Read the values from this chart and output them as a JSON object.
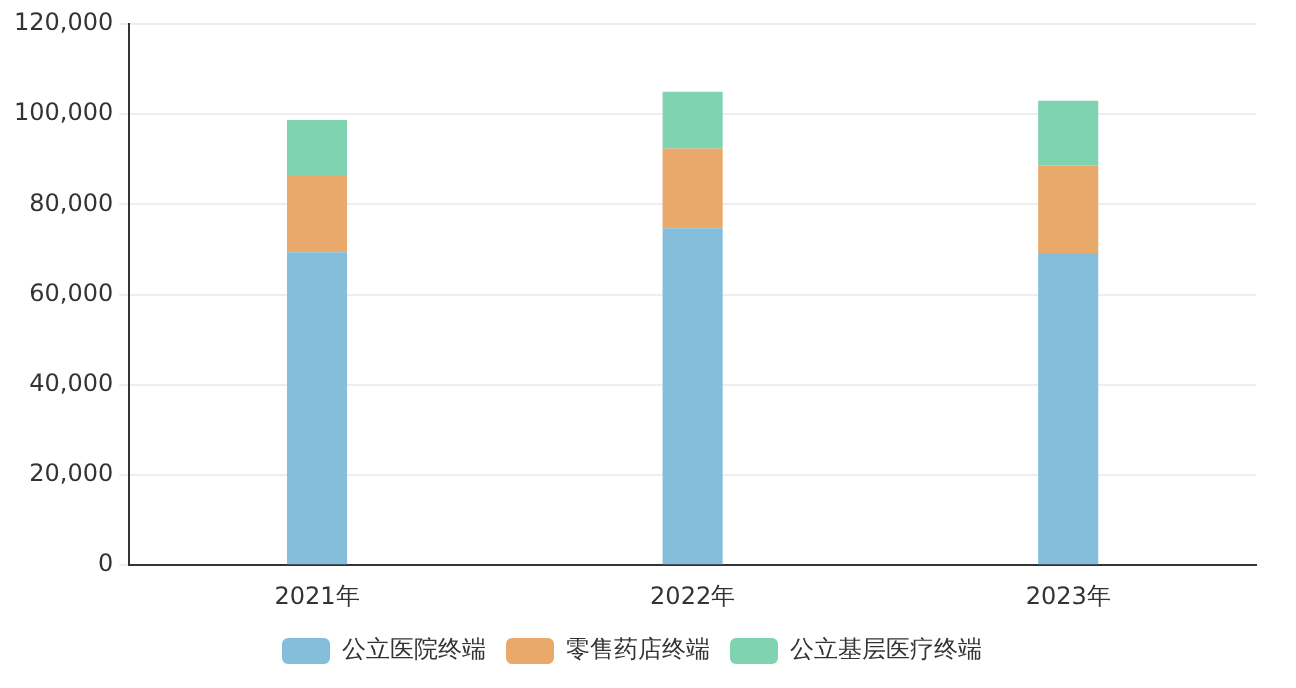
{
  "chart_data": {
    "type": "bar",
    "stacked": true,
    "categories": [
      "2021年",
      "2022年",
      "2023年"
    ],
    "series": [
      {
        "name": "公立医院终端",
        "color": "#85bedb",
        "values": [
          69400,
          74700,
          69200
        ]
      },
      {
        "name": "零售药店终端",
        "color": "#e8a96b",
        "values": [
          17100,
          17700,
          19400
        ]
      },
      {
        "name": "公立基层医疗终端",
        "color": "#7fd3b1",
        "values": [
          12200,
          12600,
          14400
        ]
      }
    ],
    "ylim": [
      0,
      120000
    ],
    "yticks": [
      {
        "value": 0,
        "label": "0"
      },
      {
        "value": 20000,
        "label": "20,000"
      },
      {
        "value": 40000,
        "label": "40,000"
      },
      {
        "value": 60000,
        "label": "60,000"
      },
      {
        "value": 80000,
        "label": "80,000"
      },
      {
        "value": 100000,
        "label": "100,000"
      },
      {
        "value": 120000,
        "label": "120,000"
      }
    ],
    "grid": "y",
    "legend": "bottom"
  }
}
